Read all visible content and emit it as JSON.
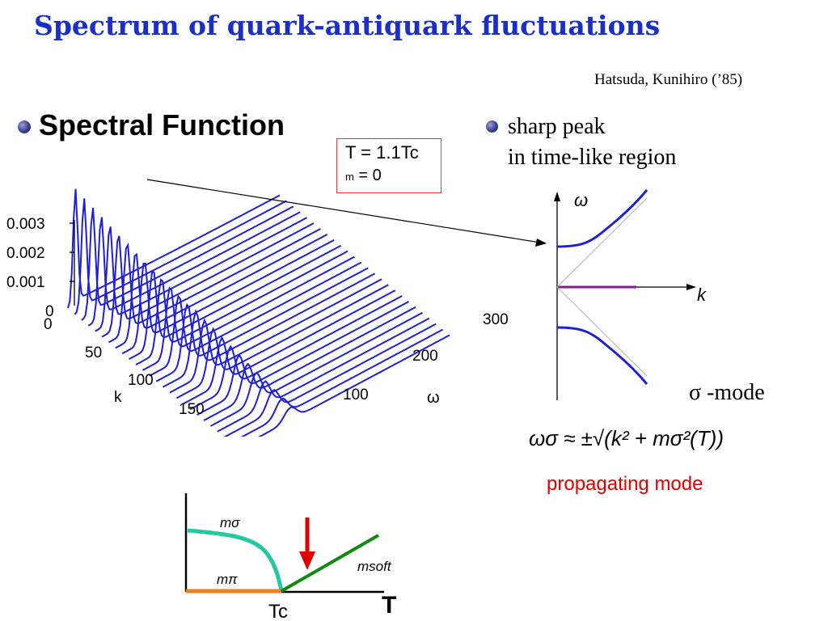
{
  "title": "Spectrum of quark-antiquark fluctuations",
  "citation": "Hatsuda, Kunihiro (’85)",
  "left_heading": "Spectral Function",
  "right_bullet": {
    "line1": "sharp peak",
    "line2": "in time-like region"
  },
  "legend": {
    "line1": "T = 1.1Tc",
    "line2_symbol": "m",
    "line2_value": " = 0"
  },
  "plot3d": {
    "z_ticks": [
      "0.003",
      "0.002",
      "0.001",
      "0"
    ],
    "k_ticks": [
      "0",
      "50",
      "100",
      "150"
    ],
    "k_label": "k",
    "omega_ticks": [
      "100",
      "200",
      "300"
    ],
    "omega_label": "ω"
  },
  "dispersion": {
    "y_label": "ω",
    "x_label": "k",
    "mode_label": "σ -mode"
  },
  "formula": "ωσ ≈ ±√(k² + mσ²(T))",
  "propagating": "propagating mode",
  "tc_plot": {
    "m_sigma": "mσ",
    "m_pi": "mπ",
    "m_soft": "msoft",
    "tc": "Tc",
    "t": "T"
  },
  "colors": {
    "title": "#1a2fc8",
    "curves": "#1f1fd8",
    "accent_red": "#e00000",
    "sigma_curve": "#25c9a0",
    "pi_curve": "#f07f1e",
    "soft_curve": "#108a10",
    "k_line": "#8a1a9a"
  }
}
